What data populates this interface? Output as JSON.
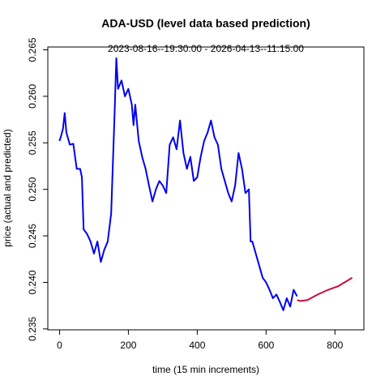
{
  "chart_data": {
    "type": "line",
    "title": "ADA-USD (level data based prediction)",
    "subtitle": "2023-08-16--19:30:00  -  2026-04-13--11:15:00",
    "x_label": "time (15 min increments)",
    "y_label": "price (actual and predicted)",
    "xlim": [
      -34,
      884
    ],
    "ylim": [
      0.2349,
      0.2653
    ],
    "xticks": [
      0,
      200,
      400,
      600,
      800
    ],
    "yticks": [
      0.235,
      {
        "value": 0.24,
        "label": "0.240"
      },
      0.245,
      {
        "value": 0.25,
        "label": "0.250"
      },
      0.255,
      {
        "value": 0.26,
        "label": "0.260"
      },
      0.265
    ],
    "series": [
      {
        "color": "#0000ee",
        "x": [
          0,
          5,
          10,
          15,
          20,
          30,
          40,
          50,
          60,
          65,
          70,
          80,
          90,
          100,
          110,
          120,
          130,
          140,
          150,
          160,
          165,
          170,
          180,
          190,
          200,
          210,
          215,
          220,
          230,
          240,
          250,
          260,
          270,
          280,
          290,
          300,
          310,
          320,
          330,
          340,
          350,
          360,
          370,
          380,
          390,
          400,
          410,
          420,
          430,
          440,
          450,
          460,
          470,
          480,
          490,
          500,
          510,
          520,
          530,
          540,
          550,
          555,
          560,
          570,
          580,
          590,
          600,
          610,
          620,
          630,
          640,
          650,
          660,
          670,
          680,
          690
        ],
        "values": [
          0.2552,
          0.2558,
          0.2565,
          0.2582,
          0.2561,
          0.2548,
          0.2549,
          0.2522,
          0.2522,
          0.2513,
          0.2457,
          0.2452,
          0.2444,
          0.2431,
          0.2444,
          0.2422,
          0.2435,
          0.2444,
          0.2474,
          0.2582,
          0.2641,
          0.2608,
          0.2617,
          0.26,
          0.2608,
          0.2591,
          0.2569,
          0.2591,
          0.2552,
          0.2535,
          0.2522,
          0.2504,
          0.2487,
          0.25,
          0.2509,
          0.2504,
          0.2496,
          0.2548,
          0.2556,
          0.2543,
          0.2574,
          0.2539,
          0.2522,
          0.2535,
          0.2509,
          0.2513,
          0.2535,
          0.2552,
          0.2561,
          0.2574,
          0.2556,
          0.2548,
          0.2522,
          0.2509,
          0.2496,
          0.2487,
          0.2504,
          0.2539,
          0.2522,
          0.2496,
          0.25,
          0.2444,
          0.2444,
          0.2431,
          0.2418,
          0.2405,
          0.24,
          0.2392,
          0.2383,
          0.2387,
          0.2379,
          0.237,
          0.2383,
          0.2374,
          0.2392,
          0.2385
        ]
      },
      {
        "color": "#cd0a3c",
        "x": [
          690,
          700,
          720,
          750,
          780,
          810,
          850
        ],
        "values": [
          0.2381,
          0.238,
          0.2381,
          0.2387,
          0.2392,
          0.2396,
          0.2405
        ]
      }
    ]
  }
}
